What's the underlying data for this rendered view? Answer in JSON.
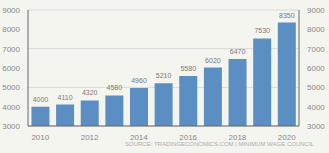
{
  "chart_data": {
    "type": "bar",
    "categories": [
      "2010",
      null,
      "2012",
      null,
      "2014",
      null,
      "2016",
      null,
      "2018",
      null,
      "2020"
    ],
    "values": [
      4000,
      4110,
      4320,
      4580,
      4960,
      5210,
      5580,
      6020,
      6470,
      7530,
      8350
    ],
    "color": "#5b8fc4",
    "ylim": [
      3000,
      9000
    ],
    "yticks": [
      3000,
      4000,
      5000,
      6000,
      7000,
      8000,
      9000
    ],
    "y2lim": [
      3000,
      9000
    ],
    "y2ticks": [
      3000,
      4000,
      5000,
      6000,
      7000,
      8000,
      9000
    ],
    "grid": true,
    "data_labels": true,
    "annotations": [
      "SOURCE: TRADINGECONOMICS.COM | MINIMUM WAGE COUNCIL"
    ]
  }
}
